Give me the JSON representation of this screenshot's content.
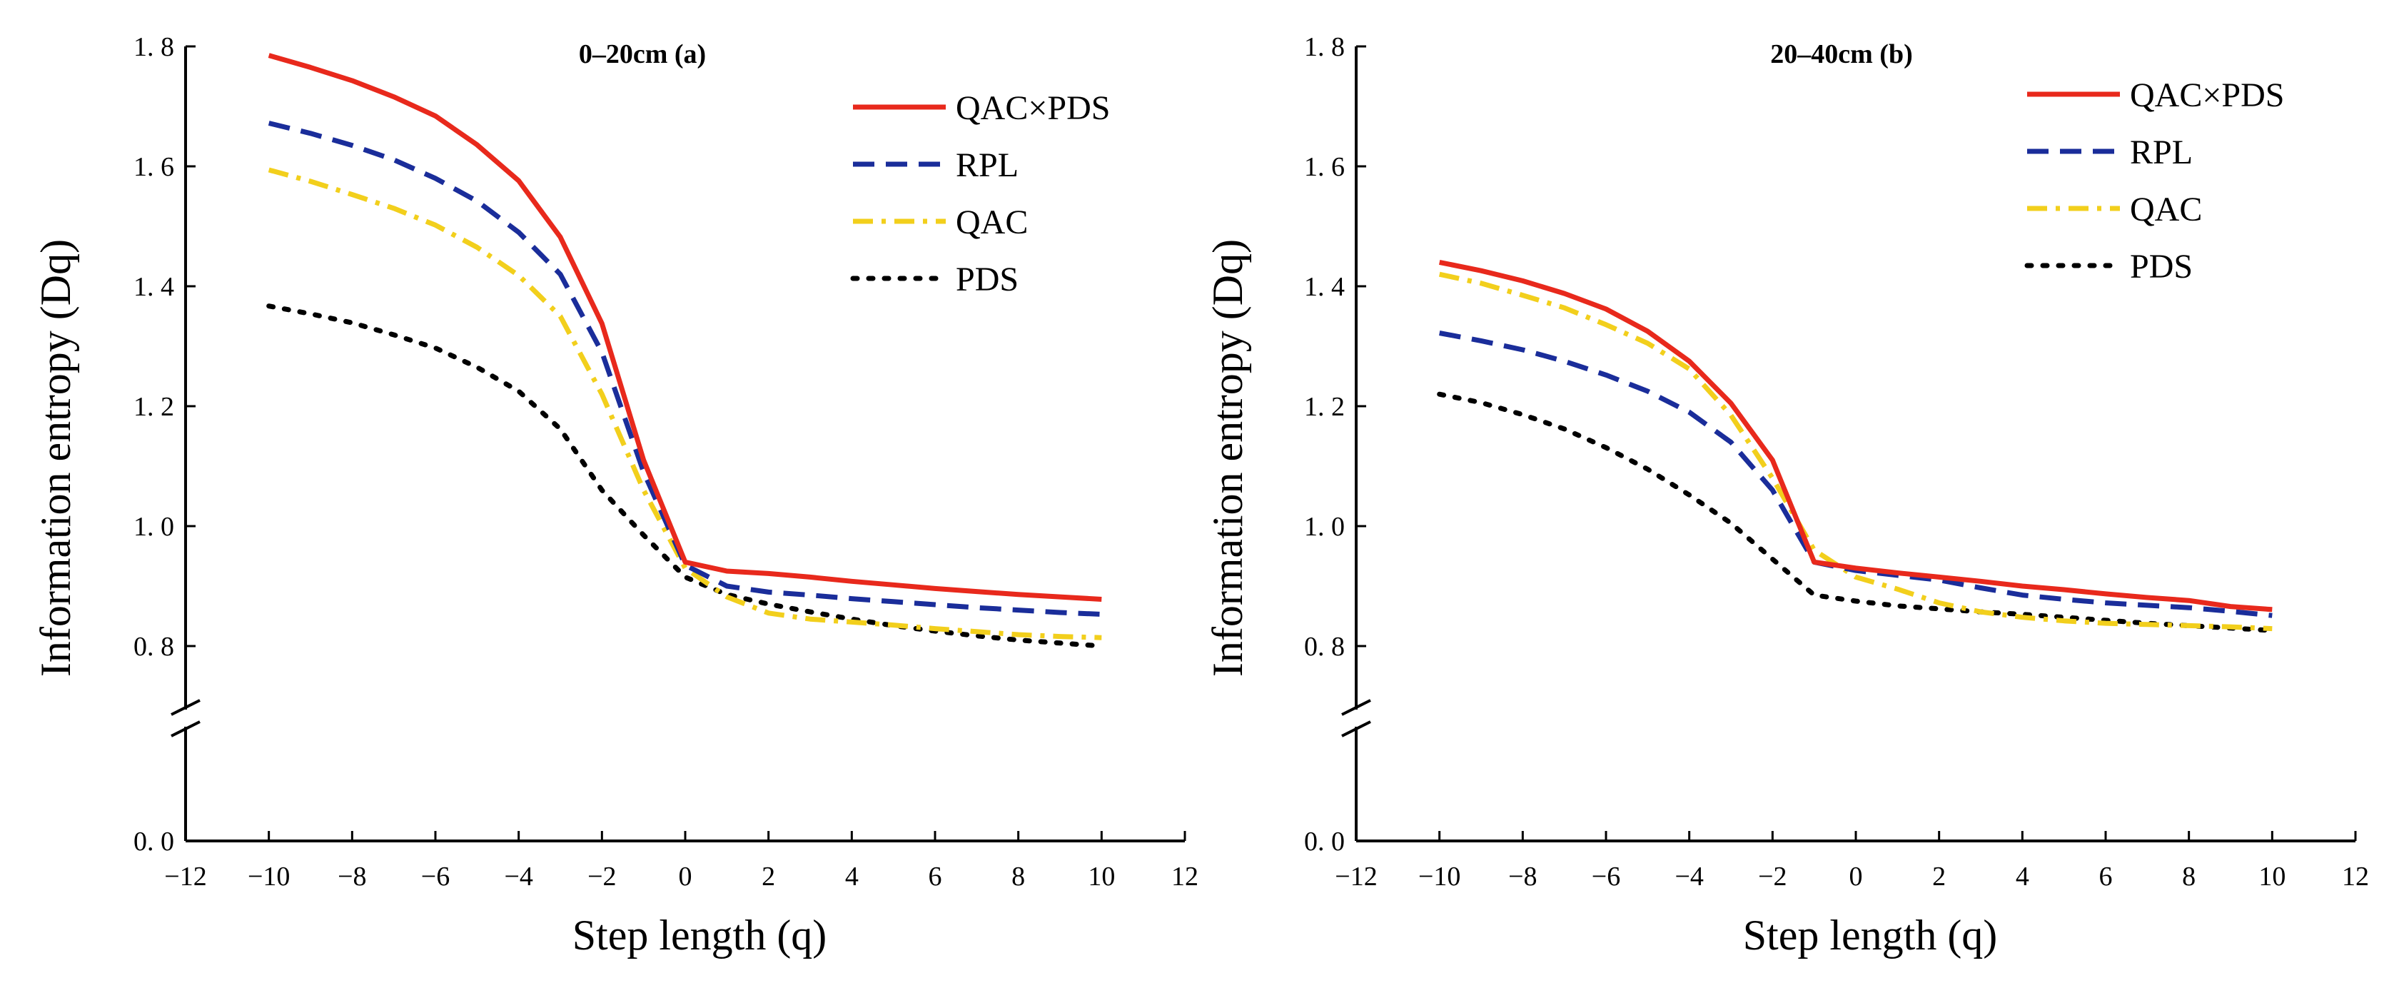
{
  "chart_data": [
    {
      "type": "line",
      "title": "0–20cm (a)",
      "xlabel": "Step length (q)",
      "ylabel": "Information entropy (Dq)",
      "xlim": [
        -12,
        12
      ],
      "xticks": [
        -12,
        -10,
        -8,
        -6,
        -4,
        -2,
        0,
        2,
        4,
        6,
        8,
        10,
        12
      ],
      "xtick_labels": [
        "−12",
        "−10",
        "−8",
        "−6",
        "−4",
        "−2",
        "0",
        "2",
        "4",
        "6",
        "8",
        "10",
        "12"
      ],
      "ylim": [
        0,
        1.8
      ],
      "y_axis_break": [
        0.0,
        0.7
      ],
      "yticks": [
        0.0,
        0.8,
        1.0,
        1.2,
        1.4,
        1.6,
        1.8
      ],
      "ytick_labels": [
        "0. 0",
        "0. 8",
        "1. 0",
        "1. 2",
        "1. 4",
        "1. 6",
        "1. 8"
      ],
      "legend_position": "top-right",
      "x": [
        -10,
        -9,
        -8,
        -7,
        -6,
        -5,
        -4,
        -3,
        -2,
        -1,
        0,
        1,
        2,
        3,
        4,
        5,
        6,
        7,
        8,
        9,
        10
      ],
      "series": [
        {
          "name": "QAC×PDS",
          "color": "#e8291c",
          "style": "solid",
          "values": [
            1.785,
            1.765,
            1.743,
            1.716,
            1.684,
            1.636,
            1.576,
            1.482,
            1.338,
            1.11,
            0.94,
            0.925,
            0.921,
            0.915,
            0.908,
            0.902,
            0.896,
            0.891,
            0.886,
            0.882,
            0.878
          ]
        },
        {
          "name": "RPL",
          "color": "#1a2d9a",
          "style": "dashed",
          "values": [
            1.672,
            1.655,
            1.635,
            1.611,
            1.58,
            1.542,
            1.49,
            1.42,
            1.29,
            1.09,
            0.935,
            0.9,
            0.89,
            0.885,
            0.879,
            0.874,
            0.869,
            0.864,
            0.86,
            0.856,
            0.853
          ]
        },
        {
          "name": "QAC",
          "color": "#f2cf1c",
          "style": "dashdot",
          "values": [
            1.594,
            1.575,
            1.553,
            1.53,
            1.502,
            1.465,
            1.418,
            1.35,
            1.22,
            1.06,
            0.93,
            0.882,
            0.855,
            0.845,
            0.84,
            0.835,
            0.829,
            0.824,
            0.819,
            0.816,
            0.814
          ]
        },
        {
          "name": "PDS",
          "color": "#000000",
          "style": "dotted",
          "values": [
            1.367,
            1.354,
            1.339,
            1.319,
            1.297,
            1.265,
            1.225,
            1.162,
            1.06,
            0.985,
            0.915,
            0.886,
            0.87,
            0.857,
            0.845,
            0.834,
            0.825,
            0.817,
            0.81,
            0.805,
            0.8
          ]
        }
      ]
    },
    {
      "type": "line",
      "title": "20–40cm (b)",
      "xlabel": "Step length (q)",
      "ylabel": "Information entropy (Dq)",
      "xlim": [
        -12,
        12
      ],
      "xticks": [
        -12,
        -10,
        -8,
        -6,
        -4,
        -2,
        0,
        2,
        4,
        6,
        8,
        10,
        12
      ],
      "xtick_labels": [
        "−12",
        "−10",
        "−8",
        "−6",
        "−4",
        "−2",
        "0",
        "2",
        "4",
        "6",
        "8",
        "10",
        "12"
      ],
      "ylim": [
        0,
        1.8
      ],
      "y_axis_break": [
        0.0,
        0.7
      ],
      "yticks": [
        0.0,
        0.8,
        1.0,
        1.2,
        1.4,
        1.6,
        1.8
      ],
      "ytick_labels": [
        "0. 0",
        "0. 8",
        "1. 0",
        "1. 2",
        "1. 4",
        "1. 6",
        "1. 8"
      ],
      "legend_position": "top-right",
      "x": [
        -10,
        -9,
        -8,
        -7,
        -6,
        -5,
        -4,
        -3,
        -2,
        -1,
        0,
        1,
        2,
        3,
        4,
        5,
        6,
        7,
        8,
        9,
        10
      ],
      "series": [
        {
          "name": "QAC×PDS",
          "color": "#e8291c",
          "style": "solid",
          "values": [
            1.44,
            1.426,
            1.409,
            1.388,
            1.362,
            1.325,
            1.275,
            1.205,
            1.11,
            0.94,
            0.93,
            0.922,
            0.915,
            0.908,
            0.9,
            0.894,
            0.887,
            0.881,
            0.876,
            0.866,
            0.861
          ]
        },
        {
          "name": "RPL",
          "color": "#1a2d9a",
          "style": "dashed",
          "values": [
            1.322,
            1.309,
            1.294,
            1.275,
            1.252,
            1.225,
            1.19,
            1.14,
            1.06,
            0.94,
            0.926,
            0.918,
            0.91,
            0.897,
            0.885,
            0.878,
            0.872,
            0.868,
            0.864,
            0.858,
            0.851
          ]
        },
        {
          "name": "QAC",
          "color": "#f2cf1c",
          "style": "dashdot",
          "values": [
            1.42,
            1.405,
            1.385,
            1.364,
            1.336,
            1.305,
            1.262,
            1.185,
            1.08,
            0.96,
            0.915,
            0.895,
            0.872,
            0.857,
            0.848,
            0.842,
            0.838,
            0.836,
            0.834,
            0.832,
            0.829
          ]
        },
        {
          "name": "PDS",
          "color": "#000000",
          "style": "dotted",
          "values": [
            1.22,
            1.206,
            1.186,
            1.162,
            1.131,
            1.095,
            1.052,
            1.005,
            0.945,
            0.885,
            0.875,
            0.867,
            0.862,
            0.857,
            0.853,
            0.848,
            0.843,
            0.838,
            0.834,
            0.83,
            0.826
          ]
        }
      ]
    }
  ]
}
